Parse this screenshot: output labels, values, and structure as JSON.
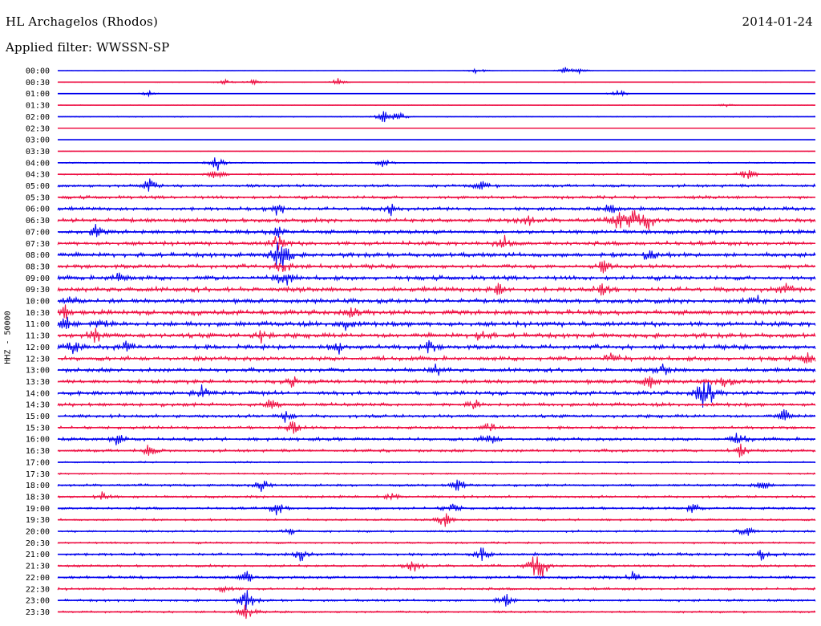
{
  "header": {
    "station": "HL Archagelos (Rhodos)",
    "date": "2014-01-24",
    "filter": "Applied filter: WWSSN-SP"
  },
  "channel_label": "HHZ - 50000",
  "colors": {
    "line_a": "#0000ee",
    "line_b": "#ee1144"
  },
  "chart_data": {
    "type": "line",
    "title": "HL Archagelos (Rhodos)",
    "subtitle": "Applied filter: WWSSN-SP",
    "ylabel": "HHZ - 50000",
    "rows": [
      "00:00",
      "00:30",
      "01:00",
      "01:30",
      "02:00",
      "02:30",
      "03:00",
      "03:30",
      "04:00",
      "04:30",
      "05:00",
      "05:30",
      "06:00",
      "06:30",
      "07:00",
      "07:30",
      "08:00",
      "08:30",
      "09:00",
      "09:30",
      "10:00",
      "10:30",
      "11:00",
      "11:30",
      "12:00",
      "12:30",
      "13:00",
      "13:30",
      "14:00",
      "14:30",
      "15:00",
      "15:30",
      "16:00",
      "16:30",
      "17:00",
      "17:30",
      "18:00",
      "18:30",
      "19:00",
      "19:30",
      "20:00",
      "20:30",
      "21:00",
      "21:30",
      "22:00",
      "22:30",
      "23:00",
      "23:30"
    ],
    "noise_level": [
      0.15,
      0.35,
      0.12,
      0.3,
      0.45,
      0.15,
      0.08,
      0.25,
      0.6,
      0.8,
      1.4,
      1.6,
      1.8,
      2.0,
      2.0,
      2.0,
      2.2,
      2.0,
      2.2,
      2.4,
      2.2,
      2.4,
      2.4,
      2.4,
      2.2,
      2.2,
      2.0,
      2.0,
      2.0,
      1.8,
      1.6,
      1.4,
      1.6,
      1.4,
      0.8,
      0.8,
      1.2,
      1.2,
      1.2,
      1.0,
      1.0,
      1.0,
      1.4,
      1.2,
      1.4,
      1.2,
      1.2,
      1.0
    ],
    "events": [
      {
        "row": 0,
        "t": 0.555,
        "amp": 6
      },
      {
        "row": 0,
        "t": 0.67,
        "amp": 5
      },
      {
        "row": 0,
        "t": 0.69,
        "amp": 4
      },
      {
        "row": 1,
        "t": 0.22,
        "amp": 4
      },
      {
        "row": 1,
        "t": 0.26,
        "amp": 5
      },
      {
        "row": 1,
        "t": 0.37,
        "amp": 5
      },
      {
        "row": 2,
        "t": 0.12,
        "amp": 4
      },
      {
        "row": 2,
        "t": 0.74,
        "amp": 8
      },
      {
        "row": 3,
        "t": 0.88,
        "amp": 3
      },
      {
        "row": 4,
        "t": 0.43,
        "amp": 8
      },
      {
        "row": 4,
        "t": 0.45,
        "amp": 7
      },
      {
        "row": 8,
        "t": 0.21,
        "amp": 14
      },
      {
        "row": 8,
        "t": 0.43,
        "amp": 6
      },
      {
        "row": 9,
        "t": 0.21,
        "amp": 10
      },
      {
        "row": 9,
        "t": 0.91,
        "amp": 9
      },
      {
        "row": 10,
        "t": 0.12,
        "amp": 10
      },
      {
        "row": 10,
        "t": 0.56,
        "amp": 6
      },
      {
        "row": 12,
        "t": 0.29,
        "amp": 12
      },
      {
        "row": 12,
        "t": 0.44,
        "amp": 8
      },
      {
        "row": 12,
        "t": 0.73,
        "amp": 9
      },
      {
        "row": 13,
        "t": 0.62,
        "amp": 8
      },
      {
        "row": 13,
        "t": 0.74,
        "amp": 14
      },
      {
        "row": 13,
        "t": 0.76,
        "amp": 14
      },
      {
        "row": 13,
        "t": 0.78,
        "amp": 12
      },
      {
        "row": 14,
        "t": 0.05,
        "amp": 8
      },
      {
        "row": 14,
        "t": 0.29,
        "amp": 9
      },
      {
        "row": 15,
        "t": 0.29,
        "amp": 14
      },
      {
        "row": 15,
        "t": 0.59,
        "amp": 9
      },
      {
        "row": 16,
        "t": 0.29,
        "amp": 18
      },
      {
        "row": 16,
        "t": 0.3,
        "amp": 16
      },
      {
        "row": 16,
        "t": 0.78,
        "amp": 8
      },
      {
        "row": 17,
        "t": 0.3,
        "amp": 14
      },
      {
        "row": 17,
        "t": 0.72,
        "amp": 8
      },
      {
        "row": 18,
        "t": 0.3,
        "amp": 14
      },
      {
        "row": 18,
        "t": 0.08,
        "amp": 9
      },
      {
        "row": 19,
        "t": 0.58,
        "amp": 10
      },
      {
        "row": 19,
        "t": 0.72,
        "amp": 8
      },
      {
        "row": 19,
        "t": 0.96,
        "amp": 8
      },
      {
        "row": 20,
        "t": 0.02,
        "amp": 10
      },
      {
        "row": 20,
        "t": 0.92,
        "amp": 10
      },
      {
        "row": 21,
        "t": 0.01,
        "amp": 9
      },
      {
        "row": 21,
        "t": 0.39,
        "amp": 8
      },
      {
        "row": 22,
        "t": 0.01,
        "amp": 12
      },
      {
        "row": 22,
        "t": 0.06,
        "amp": 10
      },
      {
        "row": 22,
        "t": 0.38,
        "amp": 9
      },
      {
        "row": 23,
        "t": 0.05,
        "amp": 10
      },
      {
        "row": 23,
        "t": 0.27,
        "amp": 9
      },
      {
        "row": 23,
        "t": 0.56,
        "amp": 8
      },
      {
        "row": 24,
        "t": 0.02,
        "amp": 10
      },
      {
        "row": 24,
        "t": 0.09,
        "amp": 9
      },
      {
        "row": 24,
        "t": 0.37,
        "amp": 12
      },
      {
        "row": 24,
        "t": 0.49,
        "amp": 9
      },
      {
        "row": 25,
        "t": 0.73,
        "amp": 8
      },
      {
        "row": 25,
        "t": 0.99,
        "amp": 9
      },
      {
        "row": 26,
        "t": 0.5,
        "amp": 9
      },
      {
        "row": 26,
        "t": 0.8,
        "amp": 8
      },
      {
        "row": 27,
        "t": 0.31,
        "amp": 9
      },
      {
        "row": 27,
        "t": 0.78,
        "amp": 10
      },
      {
        "row": 27,
        "t": 0.88,
        "amp": 9
      },
      {
        "row": 28,
        "t": 0.85,
        "amp": 16
      },
      {
        "row": 28,
        "t": 0.86,
        "amp": 15
      },
      {
        "row": 28,
        "t": 0.19,
        "amp": 9
      },
      {
        "row": 29,
        "t": 0.28,
        "amp": 8
      },
      {
        "row": 29,
        "t": 0.55,
        "amp": 8
      },
      {
        "row": 30,
        "t": 0.3,
        "amp": 9
      },
      {
        "row": 30,
        "t": 0.96,
        "amp": 9
      },
      {
        "row": 31,
        "t": 0.31,
        "amp": 9
      },
      {
        "row": 31,
        "t": 0.57,
        "amp": 8
      },
      {
        "row": 32,
        "t": 0.08,
        "amp": 9
      },
      {
        "row": 32,
        "t": 0.57,
        "amp": 9
      },
      {
        "row": 32,
        "t": 0.9,
        "amp": 12
      },
      {
        "row": 33,
        "t": 0.12,
        "amp": 8
      },
      {
        "row": 33,
        "t": 0.9,
        "amp": 10
      },
      {
        "row": 36,
        "t": 0.27,
        "amp": 9
      },
      {
        "row": 36,
        "t": 0.53,
        "amp": 12
      },
      {
        "row": 36,
        "t": 0.93,
        "amp": 9
      },
      {
        "row": 37,
        "t": 0.06,
        "amp": 7
      },
      {
        "row": 37,
        "t": 0.44,
        "amp": 7
      },
      {
        "row": 38,
        "t": 0.29,
        "amp": 10
      },
      {
        "row": 38,
        "t": 0.52,
        "amp": 9
      },
      {
        "row": 38,
        "t": 0.84,
        "amp": 9
      },
      {
        "row": 39,
        "t": 0.51,
        "amp": 12
      },
      {
        "row": 40,
        "t": 0.31,
        "amp": 7
      },
      {
        "row": 40,
        "t": 0.91,
        "amp": 8
      },
      {
        "row": 42,
        "t": 0.32,
        "amp": 10
      },
      {
        "row": 42,
        "t": 0.56,
        "amp": 10
      },
      {
        "row": 42,
        "t": 0.93,
        "amp": 8
      },
      {
        "row": 43,
        "t": 0.47,
        "amp": 10
      },
      {
        "row": 43,
        "t": 0.63,
        "amp": 14
      },
      {
        "row": 43,
        "t": 0.64,
        "amp": 12
      },
      {
        "row": 44,
        "t": 0.25,
        "amp": 9
      },
      {
        "row": 44,
        "t": 0.76,
        "amp": 9
      },
      {
        "row": 45,
        "t": 0.22,
        "amp": 7
      },
      {
        "row": 46,
        "t": 0.25,
        "amp": 16
      },
      {
        "row": 46,
        "t": 0.59,
        "amp": 10
      },
      {
        "row": 47,
        "t": 0.25,
        "amp": 12
      }
    ]
  }
}
